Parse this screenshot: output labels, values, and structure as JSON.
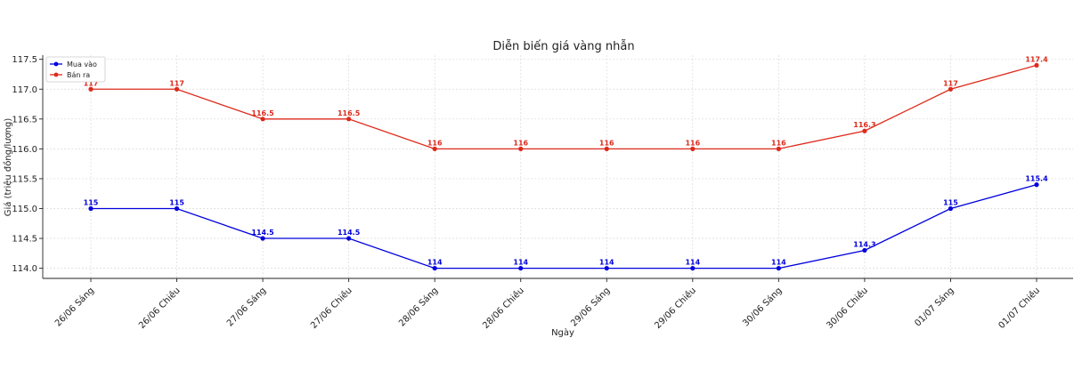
{
  "chart_data": {
    "type": "line",
    "title": "Diễn biến giá vàng nhẫn",
    "xlabel": "Ngày",
    "ylabel": "Giá (triệu đồng/lượng)",
    "categories": [
      "26/06 Sáng",
      "26/06 Chiều",
      "27/06 Sáng",
      "27/06 Chiều",
      "28/06 Sáng",
      "28/06 Chiều",
      "29/06 Sáng",
      "29/06 Chiều",
      "30/06 Sáng",
      "30/06 Chiều",
      "01/07 Sáng",
      "01/07 Chiều"
    ],
    "series": [
      {
        "name": "Mua vào",
        "color": "#0000dd",
        "values": [
          115,
          115,
          114.5,
          114.5,
          114,
          114,
          114,
          114,
          114,
          114.3,
          115,
          115.4
        ]
      },
      {
        "name": "Bán ra",
        "color": "#dd2a1b",
        "values": [
          117,
          117,
          116.5,
          116.5,
          116,
          116,
          116,
          116,
          116,
          116.3,
          117,
          117.4
        ]
      }
    ],
    "ylim": [
      113.83,
      117.57
    ],
    "yticks": [
      "114.0",
      "114.5",
      "115.0",
      "115.5",
      "116.0",
      "116.5",
      "117.0",
      "117.5"
    ],
    "grid": true,
    "legend_position": "top-left"
  }
}
